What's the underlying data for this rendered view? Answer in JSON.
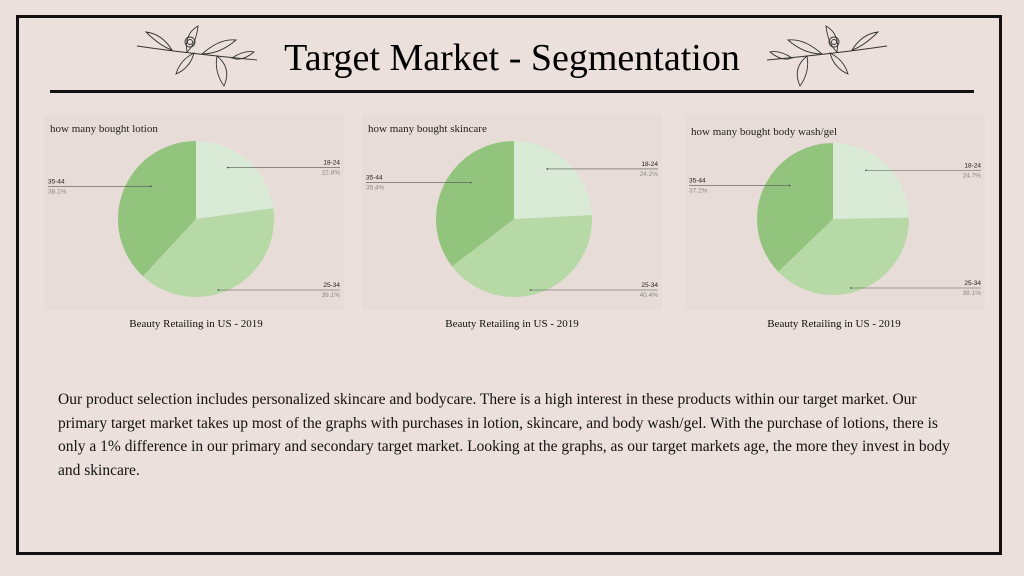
{
  "slide": {
    "title": "Target Market - Segmentation",
    "body": "Our product selection includes personalized skincare and bodycare. There is a high interest in these products within our target market. Our primary target market takes up most of the graphs with purchases in lotion, skincare, and body wash/gel. With the purchase of lotions, there is only a 1% difference in our primary and secondary target market. Looking at the graphs, as our target markets age, the more they invest in body and skincare."
  },
  "colors": {
    "slice_18_24": "#d9ead6",
    "slice_25_34": "#b6d9a6",
    "slice_35_44": "#93c47d",
    "leader": "#555555"
  },
  "chart_data": [
    {
      "type": "pie",
      "title": "how many bought lotion",
      "caption": "Beauty Retailing in US - 2019",
      "slices": [
        {
          "label": "18-24",
          "value": 22.8,
          "pct": "22.8%"
        },
        {
          "label": "25-34",
          "value": 39.1,
          "pct": "39.1%"
        },
        {
          "label": "35-44",
          "value": 38.1,
          "pct": "38.1%"
        }
      ]
    },
    {
      "type": "pie",
      "title": "how many bought skincare",
      "caption": "Beauty Retailing in US - 2019",
      "slices": [
        {
          "label": "18-24",
          "value": 24.2,
          "pct": "24.2%"
        },
        {
          "label": "25-34",
          "value": 40.4,
          "pct": "40.4%"
        },
        {
          "label": "35-44",
          "value": 35.4,
          "pct": "35.4%"
        }
      ]
    },
    {
      "type": "pie",
      "title": "how many bought body wash/gel",
      "caption": "Beauty Retailing in US - 2019",
      "slices": [
        {
          "label": "18-24",
          "value": 24.7,
          "pct": "24.7%"
        },
        {
          "label": "25-34",
          "value": 38.1,
          "pct": "38.1%"
        },
        {
          "label": "35-44",
          "value": 37.2,
          "pct": "37.2%"
        }
      ]
    }
  ]
}
